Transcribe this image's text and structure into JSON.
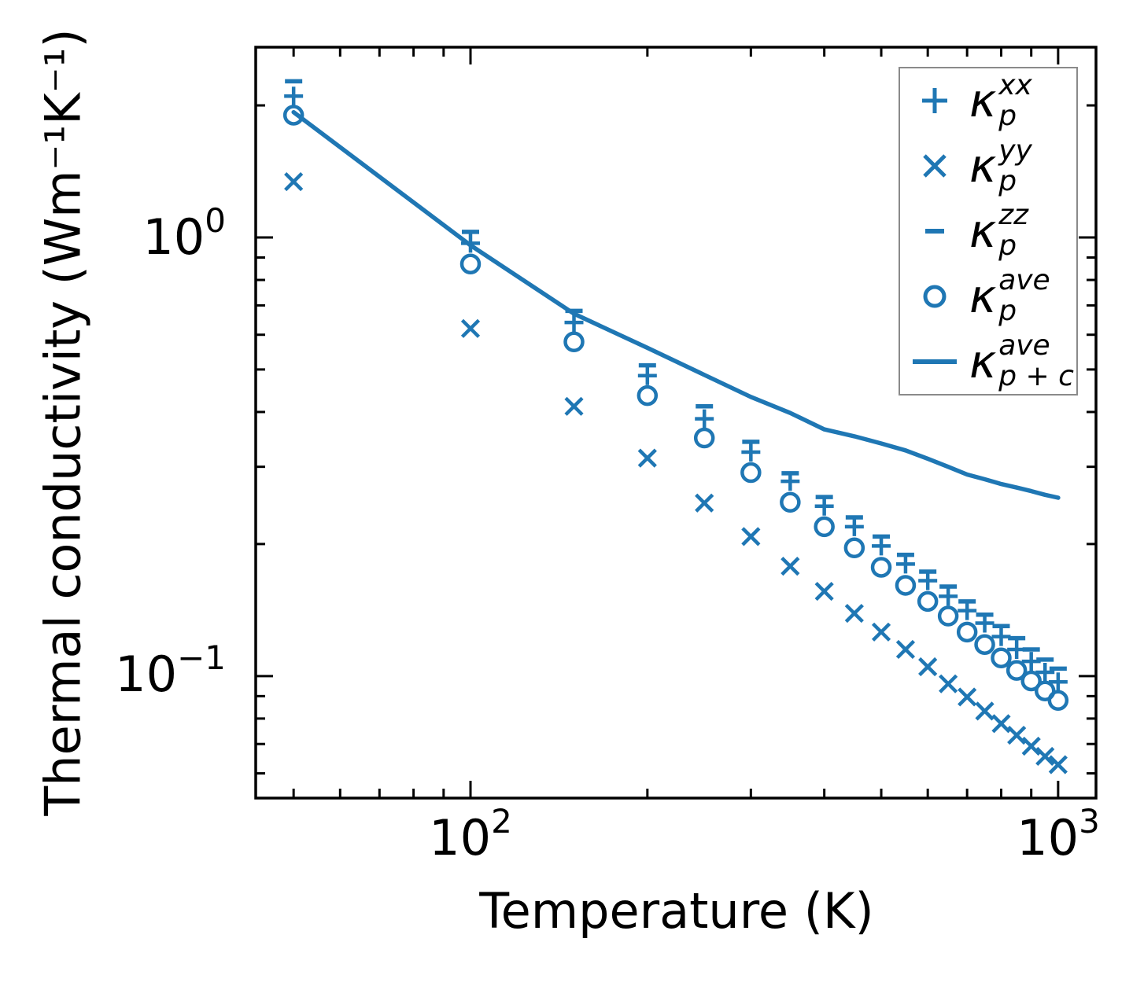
{
  "figure": {
    "background": "#ffffff",
    "series_color": "#1f77b4",
    "axis_color": "#000000",
    "legend_border_color": "#8a8a8a"
  },
  "axes": {
    "xlabel": "Temperature (K)",
    "ylabel": "Thermal conductivity (Wm⁻¹K⁻¹)",
    "x_tick_labels": [
      {
        "base": "10",
        "exp": "2"
      },
      {
        "base": "10",
        "exp": "3"
      }
    ],
    "y_tick_labels": [
      {
        "base": "10",
        "exp": "0"
      },
      {
        "base": "10",
        "exp": "−1"
      }
    ]
  },
  "legend": {
    "entries": [
      {
        "symbol": "plus",
        "kappa": "κ",
        "sup": "xx",
        "sub": "p"
      },
      {
        "symbol": "x",
        "kappa": "κ",
        "sup": "yy",
        "sub": "p"
      },
      {
        "symbol": "dash",
        "kappa": "κ",
        "sup": "zz",
        "sub": "p"
      },
      {
        "symbol": "circle",
        "kappa": "κ",
        "sup": "ave",
        "sub": "p"
      },
      {
        "symbol": "line",
        "kappa": "κ",
        "sup": "ave",
        "sub": "p + c"
      }
    ]
  },
  "chart_data": {
    "type": "scatter",
    "title": "",
    "xlabel": "Temperature (K)",
    "ylabel": "Thermal conductivity (Wm⁻¹K⁻¹)",
    "xscale": "log",
    "yscale": "log",
    "xlim": [
      43.1,
      1160
    ],
    "ylim": [
      0.0527,
      2.715
    ],
    "grid": false,
    "legend_position": "upper right",
    "x_major_ticks": [
      100,
      1000
    ],
    "x_minor_ticks": [
      50,
      60,
      70,
      80,
      90,
      200,
      300,
      400,
      500,
      600,
      700,
      800,
      900
    ],
    "y_major_ticks": [
      1,
      0.1
    ],
    "y_minor_ticks": [
      2,
      0.9,
      0.8,
      0.7,
      0.6,
      0.5,
      0.4,
      0.3,
      0.2,
      0.09,
      0.08,
      0.07,
      0.06
    ],
    "x": [
      50,
      100,
      150,
      200,
      250,
      300,
      350,
      400,
      450,
      500,
      550,
      600,
      650,
      700,
      750,
      800,
      850,
      900,
      950,
      1000
    ],
    "series": [
      {
        "name": "kappa-p-xx",
        "label": "κ_p^xx",
        "marker": "plus",
        "values": [
          2.1,
          0.97,
          0.64,
          0.484,
          0.386,
          0.324,
          0.278,
          0.244,
          0.219,
          0.198,
          0.18,
          0.165,
          0.152,
          0.141,
          0.132,
          0.123,
          0.115,
          0.108,
          0.102,
          0.097
        ]
      },
      {
        "name": "kappa-p-yy",
        "label": "κ_p^yy",
        "marker": "x",
        "values": [
          1.34,
          0.62,
          0.412,
          0.314,
          0.248,
          0.208,
          0.178,
          0.156,
          0.139,
          0.126,
          0.115,
          0.105,
          0.096,
          0.0896,
          0.0832,
          0.0779,
          0.0733,
          0.0692,
          0.0656,
          0.0628
        ]
      },
      {
        "name": "kappa-p-zz",
        "label": "κ_p^zz",
        "marker": "dash",
        "values": [
          2.27,
          1.03,
          0.68,
          0.511,
          0.412,
          0.342,
          0.29,
          0.256,
          0.23,
          0.208,
          0.189,
          0.173,
          0.16,
          0.148,
          0.138,
          0.13,
          0.122,
          0.115,
          0.109,
          0.104
        ]
      },
      {
        "name": "kappa-p-ave",
        "label": "κ_p^ave",
        "marker": "circle",
        "values": [
          1.9,
          0.87,
          0.578,
          0.436,
          0.349,
          0.291,
          0.249,
          0.219,
          0.196,
          0.177,
          0.161,
          0.148,
          0.137,
          0.126,
          0.118,
          0.11,
          0.103,
          0.0975,
          0.0925,
          0.088
        ]
      },
      {
        "name": "kappa-p-plus-c-ave",
        "label": "κ_p+c^ave",
        "marker": "line",
        "values": [
          1.93,
          0.96,
          0.67,
          0.56,
          0.486,
          0.433,
          0.398,
          0.365,
          0.352,
          0.339,
          0.327,
          0.313,
          0.3,
          0.288,
          0.281,
          0.274,
          0.269,
          0.264,
          0.259,
          0.255
        ]
      }
    ]
  }
}
